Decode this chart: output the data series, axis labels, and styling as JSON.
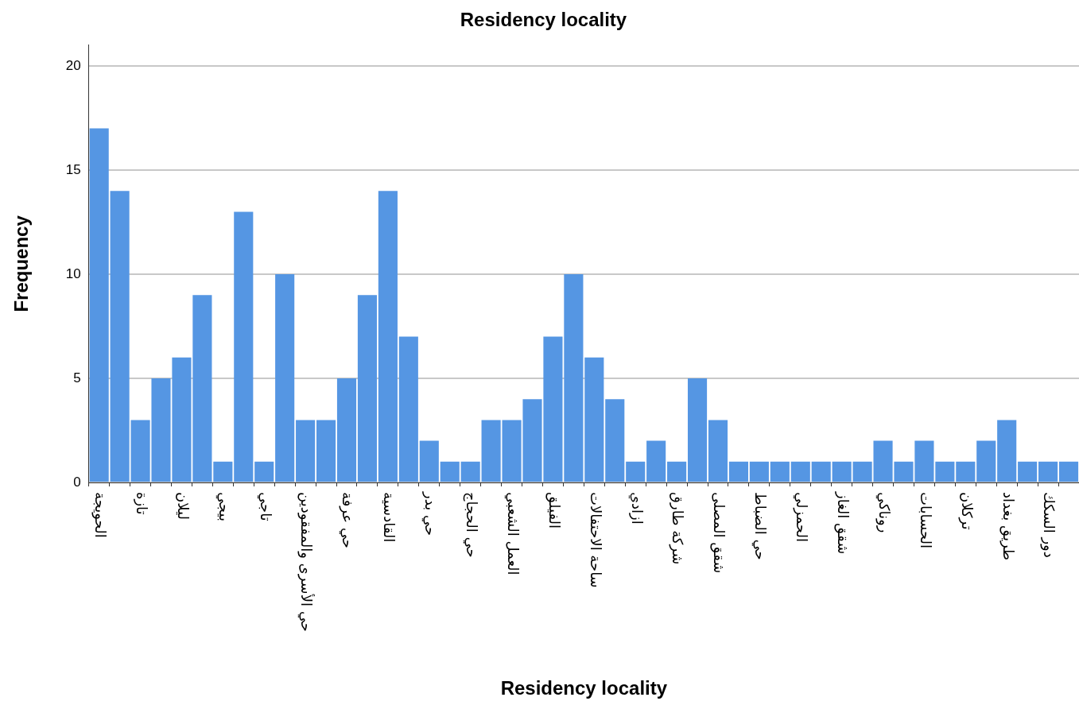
{
  "chart_data": {
    "type": "bar",
    "title": "Residency locality",
    "xlabel": "Residency locality",
    "ylabel": "Frequency",
    "categories": [
      "الحويجة",
      null,
      "تازة",
      null,
      "ليلان",
      null,
      "بيجي",
      null,
      "تاجي",
      null,
      "حي الأسرى والمفقودين",
      null,
      "حي عرفة",
      null,
      "القادسية",
      null,
      "حي بدر",
      null,
      "حي الحجاج",
      null,
      "العمل الشعبي",
      null,
      "الفيلق",
      null,
      "ساحة الاحتفالات",
      null,
      "ازادي",
      null,
      "شركة طارق",
      null,
      "شقق المصلى",
      null,
      "حي الضباط",
      null,
      "الحمزلي",
      null,
      "شقق الغاز",
      null,
      "روناكي",
      null,
      "الحسابات",
      null,
      "تركلان",
      null,
      "طريق بغداد",
      null,
      "دور السكك",
      null
    ],
    "values": [
      17,
      14,
      3,
      5,
      6,
      9,
      1,
      13,
      1,
      10,
      3,
      3,
      5,
      9,
      14,
      7,
      2,
      1,
      1,
      3,
      3,
      4,
      7,
      10,
      6,
      4,
      1,
      2,
      1,
      5,
      3,
      1,
      1,
      1,
      1,
      1,
      1,
      1,
      2,
      1,
      2,
      1,
      1,
      2,
      3,
      1,
      1,
      1
    ],
    "color": "#5596e3",
    "ylim": [
      0,
      21
    ],
    "yticks": [
      0,
      5,
      10,
      15,
      20
    ],
    "grid": "y"
  }
}
